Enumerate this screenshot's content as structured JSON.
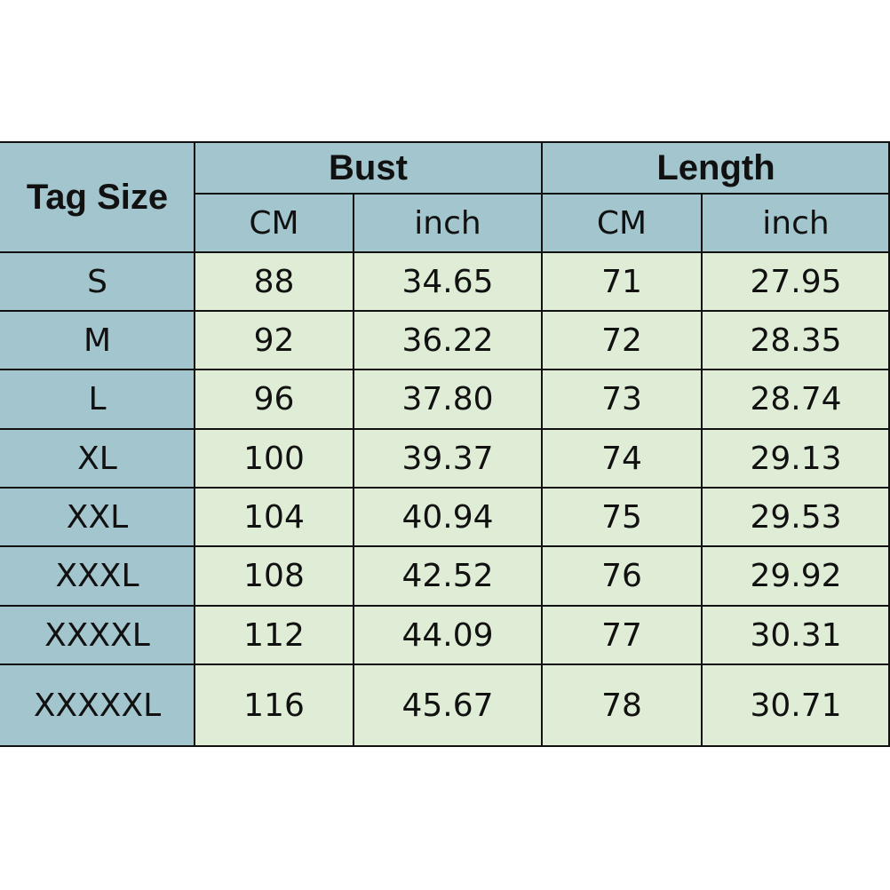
{
  "colors": {
    "header_bg": "#a3c6ce",
    "data_bg": "#dfedd6",
    "border": "#111111"
  },
  "table": {
    "tag_header": "Tag Size",
    "groups": [
      "Bust",
      "Length"
    ],
    "units": [
      "CM",
      "inch",
      "CM",
      "inch"
    ],
    "rows": [
      [
        "S",
        "88",
        "34.65",
        "71",
        "27.95"
      ],
      [
        "M",
        "92",
        "36.22",
        "72",
        "28.35"
      ],
      [
        "L",
        "96",
        "37.80",
        "73",
        "28.74"
      ],
      [
        "XL",
        "100",
        "39.37",
        "74",
        "29.13"
      ],
      [
        "XXL",
        "104",
        "40.94",
        "75",
        "29.53"
      ],
      [
        "XXXL",
        "108",
        "42.52",
        "76",
        "29.92"
      ],
      [
        "XXXXL",
        "112",
        "44.09",
        "77",
        "30.31"
      ],
      [
        "XXXXXL",
        "116",
        "45.67",
        "78",
        "30.71"
      ]
    ]
  }
}
